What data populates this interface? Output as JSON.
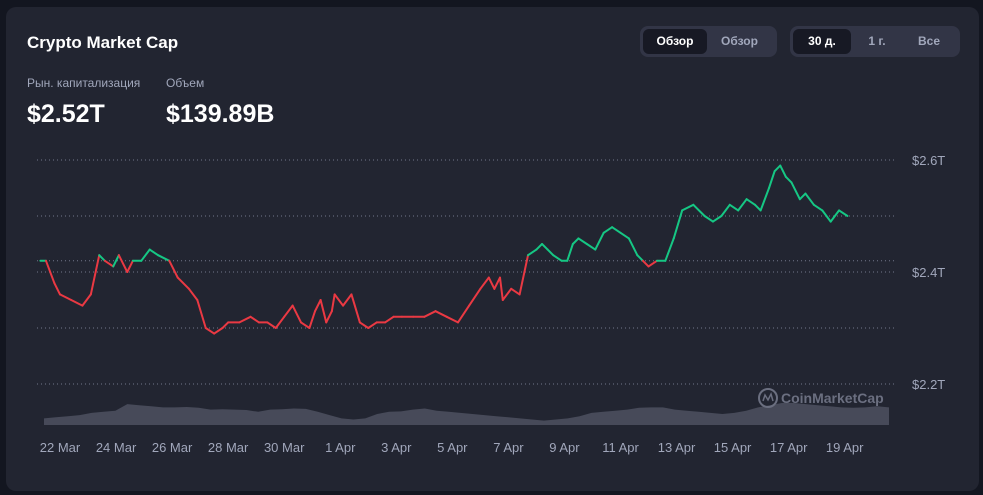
{
  "header": {
    "title": "Crypto Market Cap",
    "view_toggle": [
      "Обзор",
      "Обзор"
    ],
    "view_active_index": 0,
    "range_toggle": [
      "30 д.",
      "1 г.",
      "Все"
    ],
    "range_active_index": 0
  },
  "stats": {
    "market_cap_label": "Рын. капитализация",
    "market_cap_value": "$2.52T",
    "volume_label": "Объем",
    "volume_value": "$139.89B"
  },
  "watermark": "CoinMarketCap",
  "colors": {
    "background": "#131620",
    "card": "#222531",
    "up": "#16c784",
    "down": "#ea3943",
    "volume": "#4e5160",
    "grid": "#858ca2"
  },
  "chart_data": {
    "type": "line",
    "x_ticks": [
      "22 Mar",
      "24 Mar",
      "26 Mar",
      "28 Mar",
      "30 Mar",
      "1 Apr",
      "3 Apr",
      "5 Apr",
      "7 Apr",
      "9 Apr",
      "11 Apr",
      "13 Apr",
      "15 Apr",
      "17 Apr",
      "19 Apr"
    ],
    "y_ticks": [
      "$2.6T",
      "$2.4T",
      "$2.2T"
    ],
    "y_tick_values": [
      2.6,
      2.4,
      2.2
    ],
    "ylim": [
      2.2,
      2.6
    ],
    "baseline": 2.42,
    "grid": true,
    "series": [
      {
        "values_unit": "trillion USD",
        "x": [
          21.3,
          21.5,
          21.8,
          22.0,
          22.4,
          22.8,
          23.1,
          23.4,
          23.6,
          23.9,
          24.1,
          24.4,
          24.6,
          24.9,
          25.2,
          25.5,
          25.9,
          26.2,
          26.6,
          26.9,
          27.2,
          27.5,
          27.8,
          28.0,
          28.4,
          28.8,
          29.1,
          29.4,
          29.7,
          30.0,
          30.3,
          30.6,
          30.9,
          31.1,
          31.3,
          31.5,
          31.7,
          31.8,
          32.1,
          32.4,
          32.7,
          33.0,
          33.3,
          33.6,
          33.9,
          34.2,
          34.6,
          35.0,
          35.4,
          35.8,
          36.2,
          36.6,
          37.0,
          37.3,
          37.5,
          37.7,
          37.8,
          38.1,
          38.4,
          38.7,
          39.0,
          39.2,
          39.4,
          39.6,
          39.9,
          40.1,
          40.3,
          40.5,
          40.8,
          41.1,
          41.4,
          41.7,
          42.0,
          42.3,
          42.6,
          42.8,
          43.0,
          43.3,
          43.6,
          43.9,
          44.2,
          44.6,
          45.0,
          45.3,
          45.6,
          45.9,
          46.2,
          46.5,
          46.8,
          47.0,
          47.3,
          47.5,
          47.7,
          47.9,
          48.1,
          48.4,
          48.6,
          48.9,
          49.2,
          49.5,
          49.8,
          50.1
        ],
        "values": [
          2.42,
          2.42,
          2.38,
          2.36,
          2.35,
          2.34,
          2.36,
          2.43,
          2.42,
          2.41,
          2.43,
          2.4,
          2.42,
          2.42,
          2.44,
          2.43,
          2.42,
          2.39,
          2.37,
          2.35,
          2.3,
          2.29,
          2.3,
          2.31,
          2.31,
          2.32,
          2.31,
          2.31,
          2.3,
          2.32,
          2.34,
          2.31,
          2.3,
          2.33,
          2.35,
          2.31,
          2.33,
          2.36,
          2.34,
          2.36,
          2.31,
          2.3,
          2.31,
          2.31,
          2.32,
          2.32,
          2.32,
          2.32,
          2.33,
          2.32,
          2.31,
          2.34,
          2.37,
          2.39,
          2.37,
          2.39,
          2.35,
          2.37,
          2.36,
          2.43,
          2.44,
          2.45,
          2.44,
          2.43,
          2.42,
          2.42,
          2.45,
          2.46,
          2.45,
          2.44,
          2.47,
          2.48,
          2.47,
          2.46,
          2.43,
          2.42,
          2.41,
          2.42,
          2.42,
          2.46,
          2.51,
          2.52,
          2.5,
          2.49,
          2.5,
          2.52,
          2.51,
          2.53,
          2.52,
          2.51,
          2.55,
          2.58,
          2.59,
          2.57,
          2.56,
          2.53,
          2.54,
          2.52,
          2.51,
          2.49,
          2.51,
          2.5
        ]
      }
    ],
    "volume_relative": [
      0.3,
      0.35,
      0.4,
      0.45,
      0.55,
      0.6,
      0.65,
      0.95,
      0.9,
      0.85,
      0.8,
      0.8,
      0.82,
      0.78,
      0.7,
      0.72,
      0.7,
      0.68,
      0.6,
      0.7,
      0.72,
      0.75,
      0.73,
      0.6,
      0.45,
      0.3,
      0.25,
      0.3,
      0.5,
      0.6,
      0.62,
      0.7,
      0.75,
      0.65,
      0.6,
      0.55,
      0.5,
      0.45,
      0.4,
      0.35,
      0.3,
      0.25,
      0.2,
      0.25,
      0.3,
      0.4,
      0.55,
      0.6,
      0.65,
      0.7,
      0.78,
      0.8,
      0.8,
      0.7,
      0.65,
      0.6,
      0.55,
      0.5,
      0.55,
      0.65,
      0.8,
      0.9,
      1.0,
      1.0,
      0.95,
      0.9,
      0.85,
      0.8,
      0.78,
      0.8,
      0.85,
      0.8
    ]
  }
}
